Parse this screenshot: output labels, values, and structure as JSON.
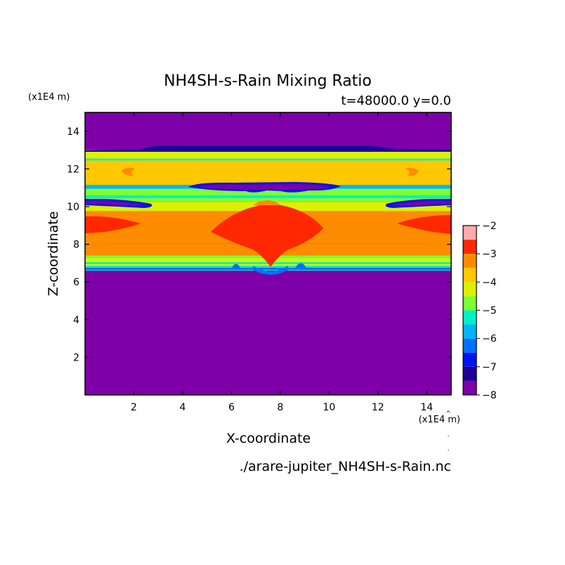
{
  "chart_data": {
    "type": "heatmap",
    "title": "NH4SH-s-Rain Mixing Ratio",
    "subtitle": "t=48000.0 y=0.0",
    "xlabel": "X-coordinate",
    "ylabel": "Z-coordinate",
    "x_unit": "(x1E4 m)",
    "y_unit": "(x1E4 m)",
    "source_file": "./arare-jupiter_NH4SH-s-Rain.nc",
    "xlim": [
      0,
      15
    ],
    "ylim": [
      0,
      15
    ],
    "x_ticks": [
      2,
      4,
      6,
      8,
      10,
      12,
      14
    ],
    "y_ticks": [
      2,
      4,
      6,
      8,
      10,
      12,
      14
    ],
    "colorbar": {
      "range": [
        -8,
        -2
      ],
      "ticks": [
        -2,
        -3,
        -4,
        -5,
        -6,
        -7,
        -8
      ],
      "levels": [
        {
          "from": -8.0,
          "to": -7.5,
          "color": "#7d00a8"
        },
        {
          "from": -7.5,
          "to": -7.0,
          "color": "#1e0098"
        },
        {
          "from": -7.0,
          "to": -6.5,
          "color": "#0014f0"
        },
        {
          "from": -6.5,
          "to": -6.0,
          "color": "#0070ff"
        },
        {
          "from": -6.0,
          "to": -5.5,
          "color": "#00b4ff"
        },
        {
          "from": -5.5,
          "to": -5.0,
          "color": "#00f0c8"
        },
        {
          "from": -5.0,
          "to": -4.5,
          "color": "#7dff32"
        },
        {
          "from": -4.5,
          "to": -4.0,
          "color": "#dcf000"
        },
        {
          "from": -4.0,
          "to": -3.5,
          "color": "#ffc800"
        },
        {
          "from": -3.5,
          "to": -3.0,
          "color": "#ff8c00"
        },
        {
          "from": -3.0,
          "to": -2.5,
          "color": "#ff2800"
        },
        {
          "from": -2.5,
          "to": -2.0,
          "color": "#ffaaaa"
        }
      ]
    },
    "background_value": -8,
    "field_bands": [
      {
        "z_bottom": 12.55,
        "z_top": 13.0,
        "value": -4.25
      },
      {
        "z_bottom": 11.15,
        "z_top": 12.55,
        "value": -3.75
      },
      {
        "z_bottom": 10.25,
        "z_top": 11.15,
        "value": -4.75
      },
      {
        "z_bottom": 9.75,
        "z_top": 10.25,
        "value": -4.25
      },
      {
        "z_bottom": 8.05,
        "z_top": 9.75,
        "value": -3.25
      },
      {
        "z_bottom": 7.4,
        "z_top": 8.05,
        "value": -3.25
      },
      {
        "z_bottom": 6.85,
        "z_top": 7.4,
        "value": -4.25
      },
      {
        "z_bottom": 6.6,
        "z_top": 6.85,
        "value": -5.5
      }
    ]
  }
}
